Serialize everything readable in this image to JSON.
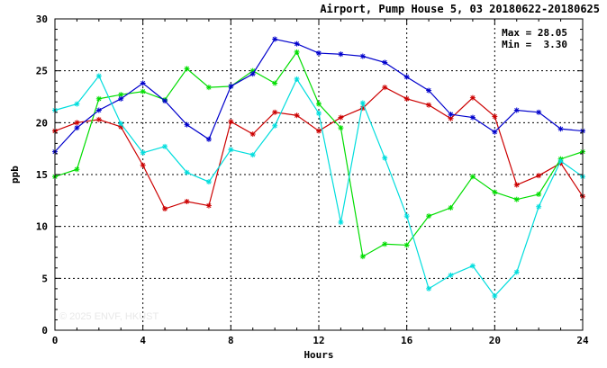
{
  "header": {
    "title": "Airport, Pump House 5, 03 20180622-20180625",
    "max_label": "Max = 28.05",
    "min_label": "Min =  3.30"
  },
  "watermark": "© 2025  ENVF, HKUST",
  "chart_data": {
    "type": "line",
    "xlabel": "Hours",
    "ylabel": "ppb",
    "xlim": [
      0,
      24
    ],
    "ylim": [
      0,
      30
    ],
    "x_ticks": [
      0,
      4,
      8,
      12,
      16,
      20,
      24
    ],
    "y_ticks": [
      0,
      5,
      10,
      15,
      20,
      25,
      30
    ],
    "grid": true,
    "x": [
      0,
      1,
      2,
      3,
      4,
      5,
      6,
      7,
      8,
      9,
      10,
      11,
      12,
      13,
      14,
      15,
      16,
      17,
      18,
      19,
      20,
      21,
      22,
      23,
      24
    ],
    "series": [
      {
        "color": "#cc0000",
        "values": [
          19.2,
          20.0,
          20.3,
          19.6,
          15.9,
          11.7,
          12.4,
          12.0,
          20.1,
          18.9,
          21.0,
          20.7,
          19.2,
          20.5,
          21.4,
          23.4,
          22.3,
          21.7,
          20.4,
          22.4,
          20.6,
          14.0,
          14.9,
          16.1,
          12.9
        ]
      },
      {
        "color": "#00dd00",
        "values": [
          14.8,
          15.5,
          22.3,
          22.7,
          23.0,
          22.2,
          25.2,
          23.4,
          23.5,
          25.0,
          23.8,
          26.8,
          21.8,
          19.5,
          7.1,
          8.3,
          8.2,
          11.0,
          11.8,
          14.8,
          13.3,
          12.6,
          13.1,
          16.5,
          17.2
        ]
      },
      {
        "color": "#0000cc",
        "values": [
          17.2,
          19.5,
          21.2,
          22.3,
          23.8,
          22.1,
          19.8,
          18.4,
          23.5,
          24.7,
          28.05,
          27.6,
          26.7,
          26.6,
          26.4,
          25.8,
          24.4,
          23.1,
          20.8,
          20.5,
          19.1,
          21.2,
          21.0,
          19.4,
          19.2
        ]
      },
      {
        "color": "#00dddd",
        "values": [
          21.2,
          21.8,
          24.5,
          19.9,
          17.1,
          17.7,
          15.2,
          14.3,
          17.4,
          16.9,
          19.7,
          24.2,
          20.9,
          10.4,
          21.9,
          16.6,
          11.0,
          4.0,
          5.3,
          6.2,
          3.3,
          5.6,
          11.9,
          16.3,
          14.8
        ]
      }
    ]
  }
}
